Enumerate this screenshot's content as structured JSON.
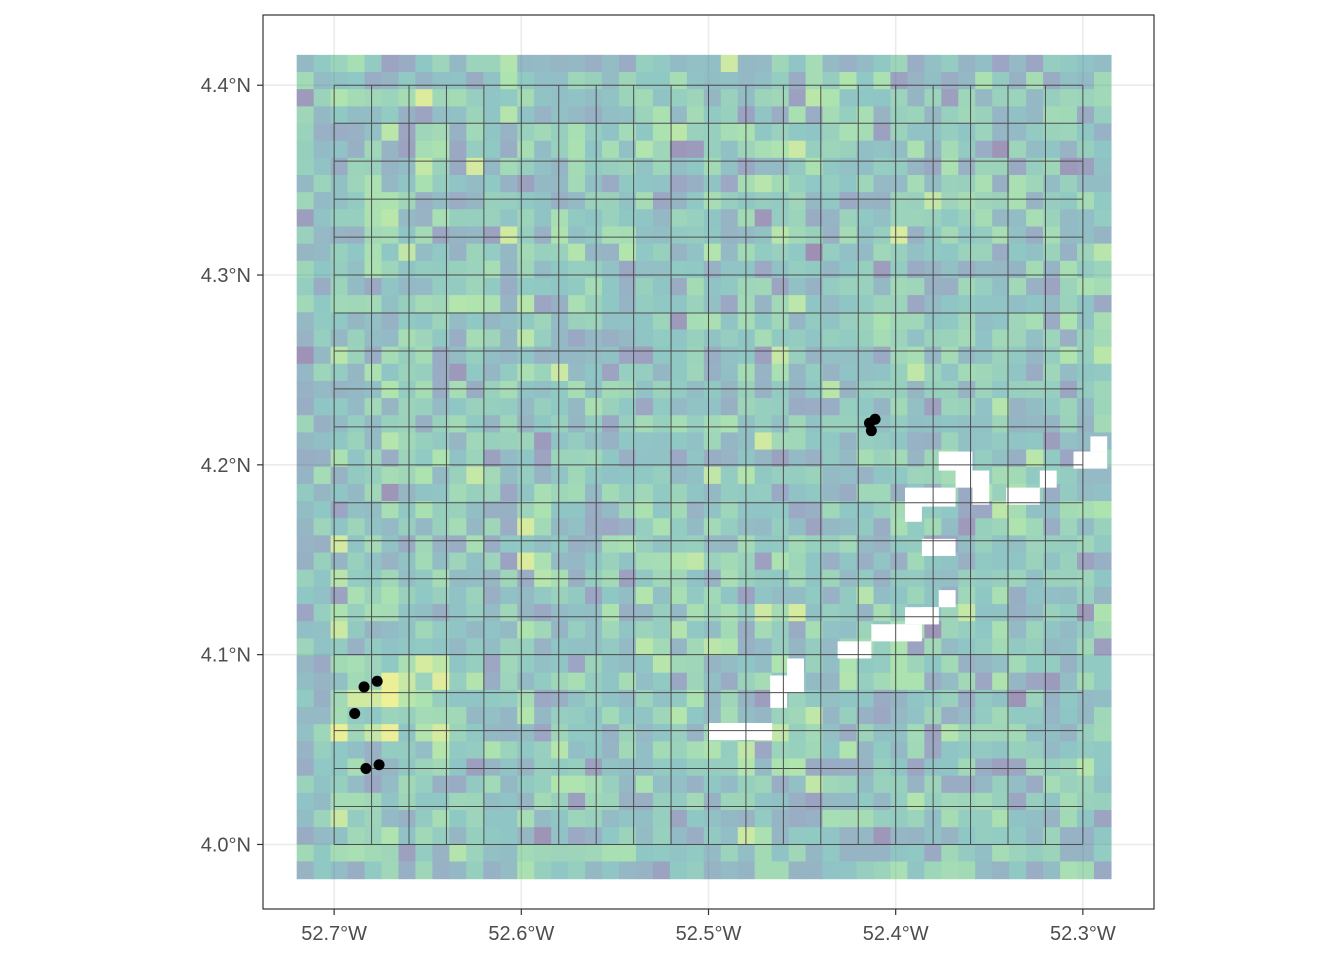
{
  "map": {
    "type": "raster-with-grid-and-points",
    "x_extent_lon": [
      -52.738,
      -52.262
    ],
    "y_extent_lat": [
      3.966,
      4.437
    ],
    "raster_extent": {
      "lon": [
        -52.72,
        -52.285
      ],
      "lat": [
        3.982,
        4.416
      ]
    },
    "raster_cell_size_deg": 0.009,
    "raster_opacity": 0.5,
    "palette": [
      "#440154",
      "#3b528b",
      "#21918c",
      "#5ec962",
      "#fde725"
    ],
    "nodata_color": "#ffffff",
    "fishnet": {
      "lon": [
        -52.7,
        -52.3
      ],
      "lat": [
        4.0,
        4.4
      ],
      "cell_size_deg": 0.02
    },
    "x_ticks": [
      {
        "value": -52.7,
        "label": "52.7°W"
      },
      {
        "value": -52.6,
        "label": "52.6°W"
      },
      {
        "value": -52.5,
        "label": "52.5°W"
      },
      {
        "value": -52.4,
        "label": "52.4°W"
      },
      {
        "value": -52.3,
        "label": "52.3°W"
      }
    ],
    "y_ticks": [
      {
        "value": 4.0,
        "label": "4.0°N"
      },
      {
        "value": 4.1,
        "label": "4.1°N"
      },
      {
        "value": 4.2,
        "label": "4.2°N"
      },
      {
        "value": 4.3,
        "label": "4.3°N"
      },
      {
        "value": 4.4,
        "label": "4.4°N"
      }
    ],
    "points": [
      {
        "lon": -52.684,
        "lat": 4.083
      },
      {
        "lon": -52.677,
        "lat": 4.086
      },
      {
        "lon": -52.689,
        "lat": 4.069
      },
      {
        "lon": -52.683,
        "lat": 4.04
      },
      {
        "lon": -52.676,
        "lat": 4.042
      },
      {
        "lon": -52.414,
        "lat": 4.222
      },
      {
        "lon": -52.411,
        "lat": 4.224
      },
      {
        "lon": -52.413,
        "lat": 4.218
      }
    ],
    "nodata_areas": [
      {
        "lon": [
          -52.395,
          -52.368
        ],
        "lat": [
          4.178,
          4.188
        ]
      },
      {
        "lon": [
          -52.395,
          -52.386
        ],
        "lat": [
          4.17,
          4.179
        ]
      },
      {
        "lon": [
          -52.368,
          -52.359
        ],
        "lat": [
          4.188,
          4.207
        ]
      },
      {
        "lon": [
          -52.377,
          -52.368
        ],
        "lat": [
          4.197,
          4.207
        ]
      },
      {
        "lon": [
          -52.359,
          -52.35
        ],
        "lat": [
          4.179,
          4.197
        ]
      },
      {
        "lon": [
          -52.341,
          -52.323
        ],
        "lat": [
          4.179,
          4.188
        ]
      },
      {
        "lon": [
          -52.323,
          -52.314
        ],
        "lat": [
          4.188,
          4.197
        ]
      },
      {
        "lon": [
          -52.305,
          -52.287
        ],
        "lat": [
          4.198,
          4.207
        ]
      },
      {
        "lon": [
          -52.296,
          -52.287
        ],
        "lat": [
          4.207,
          4.215
        ]
      },
      {
        "lon": [
          -52.386,
          -52.368
        ],
        "lat": [
          4.152,
          4.161
        ]
      },
      {
        "lon": [
          -52.386,
          -52.377
        ],
        "lat": [
          4.116,
          4.125
        ]
      },
      {
        "lon": [
          -52.377,
          -52.368
        ],
        "lat": [
          4.125,
          4.134
        ]
      },
      {
        "lon": [
          -52.395,
          -52.377
        ],
        "lat": [
          4.116,
          4.125
        ]
      },
      {
        "lon": [
          -52.413,
          -52.386
        ],
        "lat": [
          4.107,
          4.116
        ]
      },
      {
        "lon": [
          -52.431,
          -52.413
        ],
        "lat": [
          4.098,
          4.107
        ]
      },
      {
        "lon": [
          -52.458,
          -52.449
        ],
        "lat": [
          4.089,
          4.098
        ]
      },
      {
        "lon": [
          -52.467,
          -52.458
        ],
        "lat": [
          4.072,
          4.089
        ]
      },
      {
        "lon": [
          -52.467,
          -52.449
        ],
        "lat": [
          4.08,
          4.089
        ]
      },
      {
        "lon": [
          -52.5,
          -52.466
        ],
        "lat": [
          4.055,
          4.064
        ]
      }
    ]
  }
}
